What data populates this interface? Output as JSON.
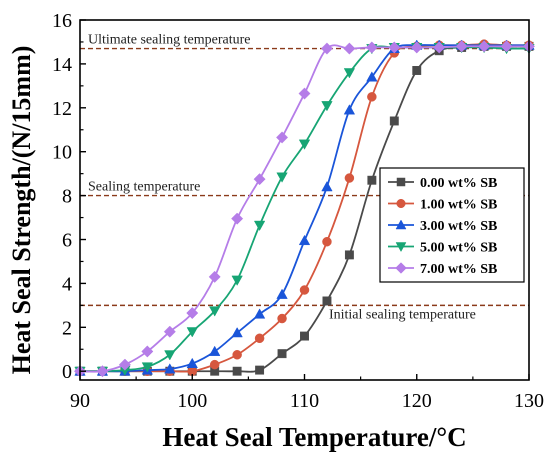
{
  "chart_data": {
    "type": "line",
    "xlabel": "Heat Seal Temperature/°C",
    "ylabel": "Heat Seal Strength/(N/15mm)",
    "xlim": [
      90,
      130
    ],
    "ylim": [
      -0.4,
      16
    ],
    "x_ticks": [
      90,
      100,
      110,
      120,
      130
    ],
    "y_ticks": [
      0,
      2,
      4,
      6,
      8,
      10,
      12,
      14,
      16
    ],
    "grid": false,
    "legend_position": "right",
    "series": [
      {
        "name": "0.00 wt% SB",
        "color": "#4a4a4a",
        "marker": "square",
        "x": [
          90,
          92,
          94,
          96,
          98,
          100,
          102,
          104,
          106,
          108,
          110,
          112,
          114,
          116,
          118,
          120,
          122,
          124,
          126,
          128,
          130
        ],
        "y": [
          0,
          0,
          0,
          0,
          0,
          0,
          0,
          0,
          0.05,
          0.8,
          1.6,
          3.2,
          5.3,
          8.7,
          11.4,
          13.7,
          14.6,
          14.75,
          14.8,
          14.8,
          14.8
        ]
      },
      {
        "name": "1.00 wt% SB",
        "color": "#d6573e",
        "marker": "circle",
        "x": [
          90,
          92,
          94,
          96,
          98,
          100,
          102,
          104,
          106,
          108,
          110,
          112,
          114,
          116,
          118,
          120,
          122,
          124,
          126,
          128,
          130
        ],
        "y": [
          0,
          0,
          0,
          0,
          0,
          0,
          0.3,
          0.75,
          1.5,
          2.4,
          3.7,
          5.9,
          8.8,
          12.5,
          14.5,
          14.8,
          14.85,
          14.85,
          14.9,
          14.85,
          14.85
        ]
      },
      {
        "name": "3.00 wt% SB",
        "color": "#1a55d9",
        "marker": "triangle-up",
        "x": [
          90,
          92,
          94,
          96,
          98,
          100,
          102,
          104,
          106,
          108,
          110,
          112,
          114,
          116,
          118,
          120,
          122,
          124,
          126,
          128,
          130
        ],
        "y": [
          0,
          0,
          0,
          0.05,
          0.1,
          0.35,
          0.9,
          1.75,
          2.6,
          3.5,
          5.95,
          8.4,
          11.9,
          13.4,
          14.7,
          14.85,
          14.85,
          14.85,
          14.85,
          14.85,
          14.85
        ]
      },
      {
        "name": "5.00 wt% SB",
        "color": "#17a574",
        "marker": "triangle-down",
        "x": [
          90,
          92,
          94,
          96,
          98,
          100,
          102,
          104,
          106,
          108,
          110,
          112,
          114,
          116,
          118,
          120,
          122,
          124,
          126,
          128,
          130
        ],
        "y": [
          0,
          0,
          0.05,
          0.2,
          0.75,
          1.8,
          2.75,
          4.15,
          6.65,
          8.85,
          10.35,
          12.1,
          13.6,
          14.7,
          14.75,
          14.75,
          14.75,
          14.75,
          14.75,
          14.7,
          14.7
        ]
      },
      {
        "name": "7.00 wt% SB",
        "color": "#b57de8",
        "marker": "diamond",
        "x": [
          90,
          92,
          94,
          96,
          98,
          100,
          102,
          104,
          106,
          108,
          110,
          112,
          114,
          116,
          118,
          120,
          122,
          124,
          126,
          128,
          130
        ],
        "y": [
          0,
          0,
          0.3,
          0.9,
          1.8,
          2.65,
          4.3,
          6.95,
          8.75,
          10.65,
          12.65,
          14.7,
          14.7,
          14.75,
          14.75,
          14.75,
          14.75,
          14.8,
          14.8,
          14.8,
          14.8
        ]
      }
    ],
    "reference_lines": [
      {
        "y": 14.7,
        "label": "Ultimate sealing temperature",
        "color": "#8b3a1a"
      },
      {
        "y": 8,
        "label": "Sealing temperature",
        "color": "#8b3a1a"
      },
      {
        "y": 3,
        "label": "Initial sealing temperature",
        "color": "#8b3a1a"
      }
    ]
  }
}
